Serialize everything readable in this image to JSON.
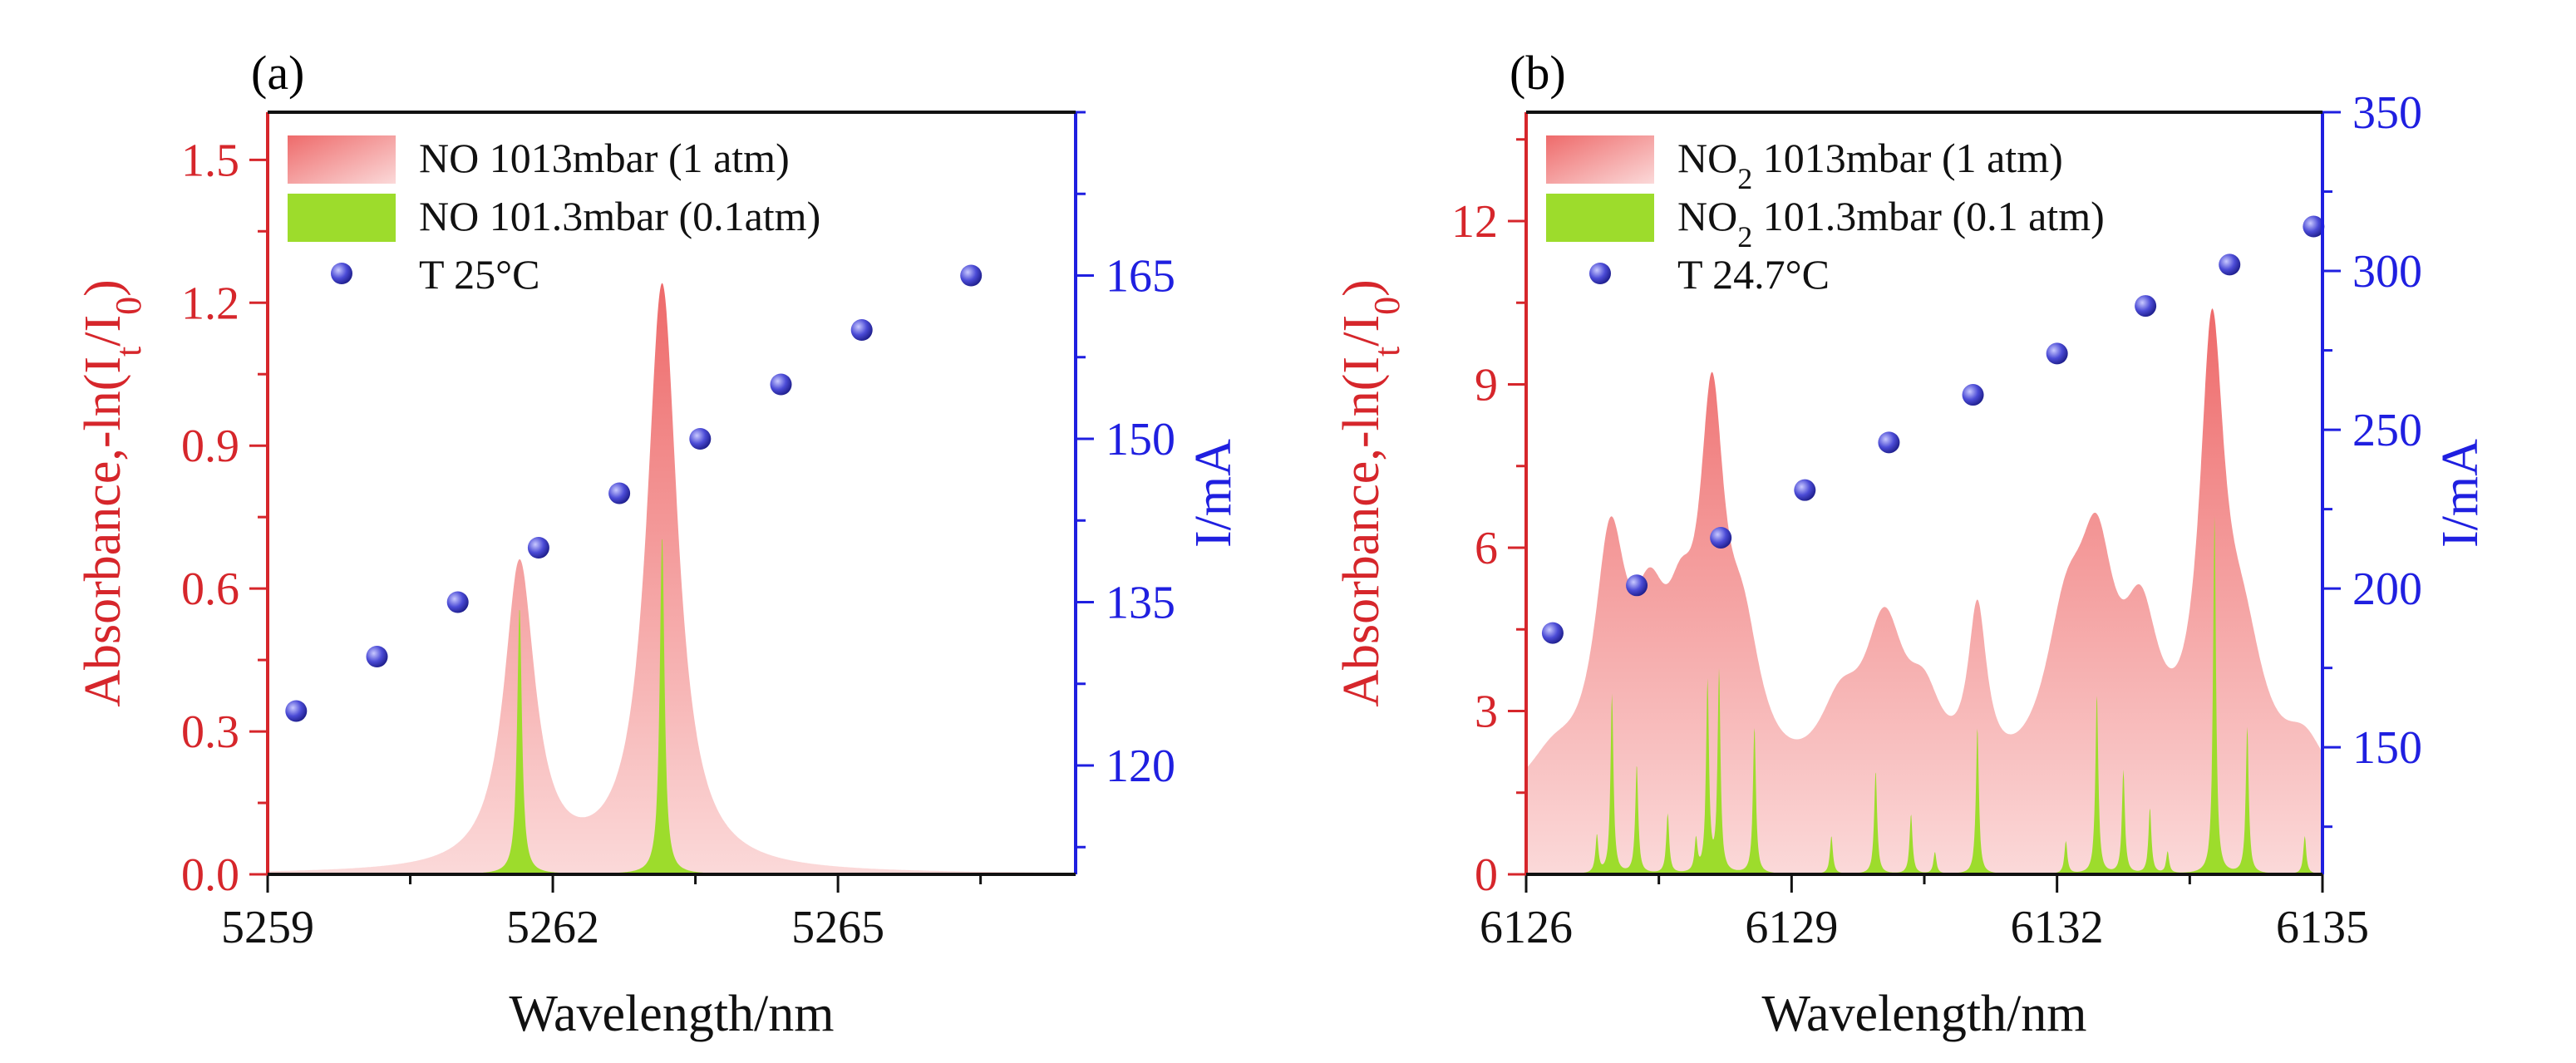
{
  "figure": {
    "colors": {
      "left_axis": "#d6262b",
      "right_axis": "#1f1fe0",
      "bottom_axis": "#111111",
      "broad_fill_top": "#ee6a6a",
      "broad_fill_bottom": "#fbd9d9",
      "narrow_fill": "#9ddc2c",
      "marker_fill": "#4b4bd6",
      "marker_highlight": "#c9c9ff"
    }
  },
  "chart_data": [
    {
      "id": "a",
      "panel_label": "(a)",
      "type": "area",
      "xlabel": "Wavelength/nm",
      "ylabel": "Absorbance,-ln(I",
      "ylabel_sub1": "t",
      "ylabel_mid": "/I",
      "ylabel_sub2": "0",
      "ylabel_end": ")",
      "y2label": "I/mA",
      "xlim": [
        5259,
        5267.5
      ],
      "ylim": [
        0,
        1.6
      ],
      "y2lim": [
        110,
        180
      ],
      "xticks": [
        5259,
        5262,
        5265
      ],
      "xtick_labels": [
        "5259",
        "5262",
        "5265"
      ],
      "yticks": [
        0,
        0.3,
        0.6,
        0.9,
        1.2,
        1.5
      ],
      "ytick_labels": [
        "0.0",
        "0.3",
        "0.6",
        "0.9",
        "1.2",
        "1.5"
      ],
      "y2ticks": [
        120,
        135,
        150,
        165
      ],
      "y2tick_labels": [
        "120",
        "135",
        "150",
        "165"
      ],
      "legend": [
        {
          "label": "NO 1013mbar  (1 atm)",
          "kind": "broad"
        },
        {
          "label": "NO 101.3mbar (0.1atm)",
          "kind": "narrow"
        },
        {
          "label": "T 25°C",
          "kind": "marker"
        }
      ],
      "series": [
        {
          "name": "NO 1013mbar  (1 atm)",
          "kind": "broad",
          "baseline": 0,
          "peaks": [
            {
              "center": 5261.65,
              "height": 0.64,
              "width": 0.2
            },
            {
              "center": 5263.15,
              "height": 1.23,
              "width": 0.2
            }
          ]
        },
        {
          "name": "NO 101.3mbar (0.1atm)",
          "kind": "narrow",
          "baseline": 0,
          "peaks": [
            {
              "center": 5261.65,
              "height": 0.56,
              "width": 0.03
            },
            {
              "center": 5263.15,
              "height": 0.71,
              "width": 0.03
            }
          ]
        },
        {
          "name": "T 25°C",
          "kind": "marker",
          "x": [
            5259.3,
            5260.15,
            5261.0,
            5261.85,
            5262.7,
            5263.55,
            5264.4,
            5265.25,
            5266.4
          ],
          "y": [
            125,
            130,
            135,
            140,
            145,
            150,
            155,
            160,
            165
          ]
        }
      ]
    },
    {
      "id": "b",
      "panel_label": "(b)",
      "type": "area",
      "xlabel": "Wavelength/nm",
      "ylabel": "Absorbance,-ln(I",
      "ylabel_sub1": "t",
      "ylabel_mid": "/I",
      "ylabel_sub2": "0",
      "ylabel_end": ")",
      "y2label": "I/mA",
      "xlim": [
        6126,
        6135
      ],
      "ylim": [
        0,
        14
      ],
      "y2lim": [
        110,
        350
      ],
      "xticks": [
        6126,
        6129,
        6132,
        6135
      ],
      "xtick_labels": [
        "6126",
        "6129",
        "6132",
        "6135"
      ],
      "yticks": [
        0,
        3,
        6,
        9,
        12
      ],
      "ytick_labels": [
        "0",
        "3",
        "6",
        "9",
        "12"
      ],
      "y2ticks": [
        150,
        200,
        250,
        300,
        350
      ],
      "y2tick_labels": [
        "150",
        "200",
        "250",
        "300",
        "350"
      ],
      "legend": [
        {
          "label": "NO",
          "sub": "2",
          "rest": " 1013mbar (1 atm)",
          "kind": "broad"
        },
        {
          "label": "NO",
          "sub": "2",
          "rest": " 101.3mbar (0.1 atm)",
          "kind": "narrow"
        },
        {
          "label": "T 24.7°C",
          "kind": "marker"
        }
      ],
      "series": [
        {
          "name": "NO2 1013mbar (1 atm)",
          "kind": "broad",
          "baseline": 1.1,
          "peaks": [
            {
              "center": 6126.3,
              "height": 0.7,
              "width": 0.35
            },
            {
              "center": 6126.95,
              "height": 4.3,
              "width": 0.22
            },
            {
              "center": 6127.4,
              "height": 2.6,
              "width": 0.25
            },
            {
              "center": 6127.75,
              "height": 1.9,
              "width": 0.2
            },
            {
              "center": 6128.1,
              "height": 6.2,
              "width": 0.17
            },
            {
              "center": 6128.45,
              "height": 2.4,
              "width": 0.25
            },
            {
              "center": 6129.55,
              "height": 1.3,
              "width": 0.3
            },
            {
              "center": 6130.05,
              "height": 2.8,
              "width": 0.28
            },
            {
              "center": 6130.5,
              "height": 1.3,
              "width": 0.25
            },
            {
              "center": 6131.1,
              "height": 3.0,
              "width": 0.13
            },
            {
              "center": 6132.1,
              "height": 2.7,
              "width": 0.3
            },
            {
              "center": 6132.45,
              "height": 3.5,
              "width": 0.25
            },
            {
              "center": 6132.95,
              "height": 2.6,
              "width": 0.25
            },
            {
              "center": 6133.75,
              "height": 7.7,
              "width": 0.17
            },
            {
              "center": 6134.1,
              "height": 2.4,
              "width": 0.3
            },
            {
              "center": 6134.8,
              "height": 0.9,
              "width": 0.3
            }
          ]
        },
        {
          "name": "NO2 101.3mbar (0.1 atm)",
          "kind": "narrow",
          "baseline": 0,
          "peaks": [
            {
              "center": 6126.8,
              "height": 0.7,
              "width": 0.02
            },
            {
              "center": 6126.97,
              "height": 3.3,
              "width": 0.02
            },
            {
              "center": 6127.25,
              "height": 2.0,
              "width": 0.02
            },
            {
              "center": 6127.6,
              "height": 1.1,
              "width": 0.02
            },
            {
              "center": 6127.92,
              "height": 0.6,
              "width": 0.02
            },
            {
              "center": 6128.05,
              "height": 3.5,
              "width": 0.02
            },
            {
              "center": 6128.18,
              "height": 3.7,
              "width": 0.02
            },
            {
              "center": 6128.58,
              "height": 2.7,
              "width": 0.02
            },
            {
              "center": 6129.45,
              "height": 0.7,
              "width": 0.02
            },
            {
              "center": 6129.95,
              "height": 1.9,
              "width": 0.02
            },
            {
              "center": 6130.35,
              "height": 1.1,
              "width": 0.02
            },
            {
              "center": 6130.62,
              "height": 0.4,
              "width": 0.02
            },
            {
              "center": 6131.1,
              "height": 2.7,
              "width": 0.02
            },
            {
              "center": 6132.1,
              "height": 0.6,
              "width": 0.02
            },
            {
              "center": 6132.45,
              "height": 3.3,
              "width": 0.02
            },
            {
              "center": 6132.75,
              "height": 1.9,
              "width": 0.02
            },
            {
              "center": 6133.05,
              "height": 1.2,
              "width": 0.02
            },
            {
              "center": 6133.25,
              "height": 0.4,
              "width": 0.02
            },
            {
              "center": 6133.78,
              "height": 6.6,
              "width": 0.02
            },
            {
              "center": 6134.15,
              "height": 2.7,
              "width": 0.02
            },
            {
              "center": 6134.8,
              "height": 0.7,
              "width": 0.02
            }
          ]
        },
        {
          "name": "T 24.7°C",
          "kind": "marker",
          "x": [
            6126.3,
            6127.25,
            6128.2,
            6129.15,
            6130.1,
            6131.05,
            6132.0,
            6133.0,
            6133.95,
            6134.9
          ],
          "y": [
            186,
            201,
            216,
            231,
            246,
            261,
            274,
            289,
            302,
            314
          ]
        }
      ]
    }
  ]
}
